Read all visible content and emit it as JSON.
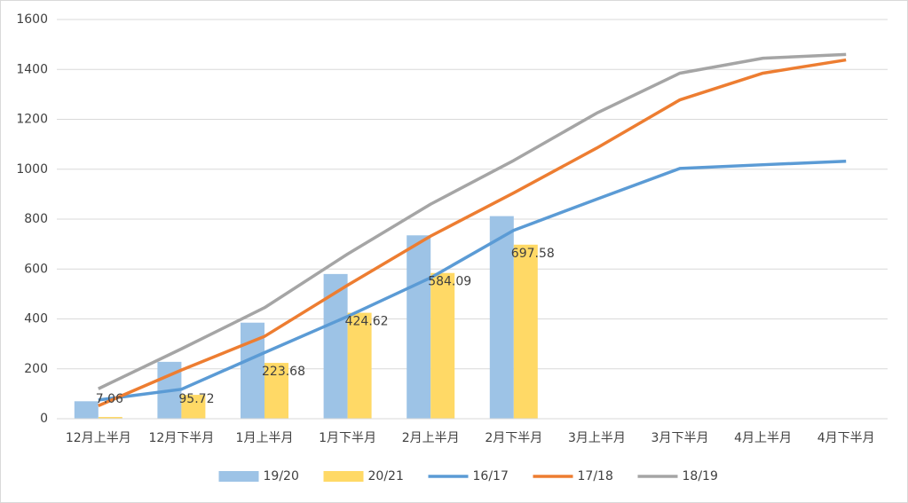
{
  "chart_data": {
    "type": "combo",
    "categories": [
      "12月上半月",
      "12月下半月",
      "1月上半月",
      "1月下半月",
      "2月上半月",
      "2月下半月",
      "3月上半月",
      "3月下半月",
      "4月上半月",
      "4月下半月"
    ],
    "series": [
      {
        "name": "19/20",
        "type": "bar",
        "color": "#9dc3e6",
        "values": [
          70,
          228,
          385,
          580,
          735,
          812,
          null,
          null,
          null,
          null
        ]
      },
      {
        "name": "20/21",
        "type": "bar",
        "color": "#ffd966",
        "values": [
          7.06,
          95.72,
          223.68,
          424.62,
          584.09,
          697.58,
          null,
          null,
          null,
          null
        ],
        "data_labels": true
      },
      {
        "name": "16/17",
        "type": "line",
        "color": "#5b9bd5",
        "values": [
          75,
          118,
          265,
          410,
          565,
          755,
          880,
          1003,
          1018,
          1032
        ]
      },
      {
        "name": "17/18",
        "type": "line",
        "color": "#ed7d31",
        "values": [
          52,
          195,
          330,
          535,
          732,
          905,
          1085,
          1278,
          1385,
          1438
        ]
      },
      {
        "name": "18/19",
        "type": "line",
        "color": "#a5a5a5",
        "values": [
          120,
          280,
          445,
          660,
          860,
          1035,
          1225,
          1385,
          1445,
          1460
        ]
      }
    ],
    "ylim": [
      0,
      1600
    ],
    "yticks": [
      0,
      200,
      400,
      600,
      800,
      1000,
      1200,
      1400,
      1600
    ],
    "grid": true,
    "legend": "bottom"
  }
}
